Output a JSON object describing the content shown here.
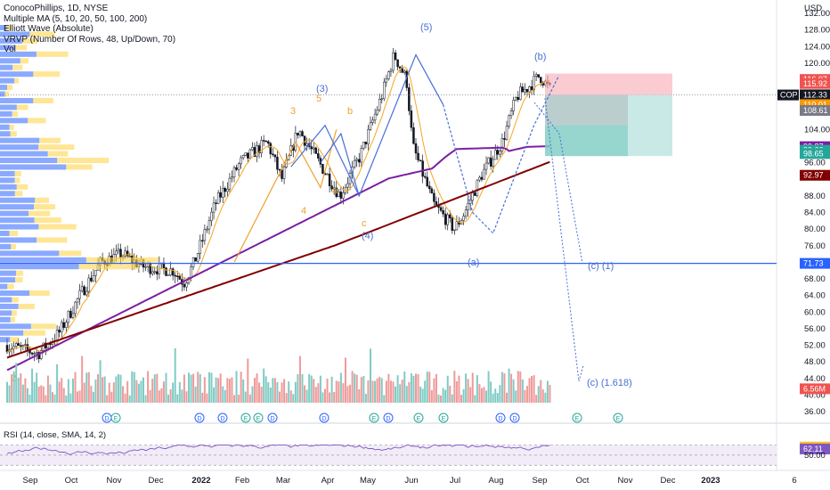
{
  "header": {
    "symbol_line": "ConocoPhillips, 1D, NYSE",
    "indicators": [
      "Multiple MA (5, 10, 20, 50, 100, 200)",
      "Elliott Wave (Absolute)",
      "VRVP (Number Of Rows, 48, Up/Down, 70)",
      "Vol"
    ],
    "currency": "USD"
  },
  "rsi_legend": "RSI (14, close, SMA, 14, 2)",
  "colors": {
    "up": "#26a69a",
    "down": "#ef5350",
    "ma_orange": "#f5a623",
    "ma_purple": "#7b1fa2",
    "ma_maroon": "#800000",
    "wave": "#4a6fd6",
    "wave_orange": "#f0a030",
    "hline": "#2962ff"
  },
  "chart_data": {
    "type": "candlestick",
    "ylim": [
      34,
      134
    ],
    "y_ticks": [
      "132.00",
      "128.00",
      "124.00",
      "120.00",
      "104.00",
      "96.00",
      "88.00",
      "84.00",
      "80.00",
      "76.00",
      "68.00",
      "64.00",
      "60.00",
      "56.00",
      "52.00",
      "48.00",
      "44.00",
      "40.00",
      "36.00"
    ],
    "x_ticks": [
      "Sep",
      "Oct",
      "Nov",
      "Dec",
      "2022",
      "Feb",
      "Mar",
      "Apr",
      "May",
      "Jun",
      "Jul",
      "Aug",
      "Sep",
      "Oct",
      "Nov",
      "Dec",
      "2023",
      "6"
    ],
    "price_tags": [
      {
        "label": "116.07",
        "color": "#ef5350"
      },
      {
        "label": "115.92",
        "color": "#ef5350"
      },
      {
        "label": "112.64",
        "color": "#e0b0b0"
      },
      {
        "label": "112.33",
        "color": "#131722"
      },
      {
        "label": "110.01",
        "color": "#ff9800"
      },
      {
        "label": "108.61",
        "color": "#787b86"
      },
      {
        "label": "99.87",
        "color": "#7b1fa2"
      },
      {
        "label": "99.66",
        "color": "#26a69a"
      },
      {
        "label": "98.65",
        "color": "#26a69a"
      },
      {
        "label": "92.97",
        "color": "#800000"
      },
      {
        "label": "71.73",
        "color": "#2962ff"
      },
      {
        "label": "6.56M",
        "color": "#ef5350"
      }
    ],
    "last_price_label": "COP",
    "last_price": 112.33,
    "horizontal_line": 71.73,
    "trade_box": {
      "entry": 112.33,
      "stop": 117.5,
      "target": 97.6
    },
    "wave_labels": [
      "(5)",
      "(b)",
      "(3)",
      "(4)",
      "(a)",
      "(c) (1)",
      "(c) (1.618)",
      "3",
      "5",
      "b",
      "a",
      "4",
      "c",
      "2"
    ],
    "volume_max_label": "6.56M",
    "event_badges": [
      "D",
      "E",
      "D",
      "E",
      "E",
      "D",
      "E",
      "D",
      "E",
      "D",
      "D",
      "E",
      "E",
      "D",
      "D",
      "E"
    ],
    "rsi": {
      "y_ticks": [
        "65.98",
        "62.11",
        "50.00"
      ],
      "levels": [
        70,
        50,
        30
      ]
    }
  }
}
